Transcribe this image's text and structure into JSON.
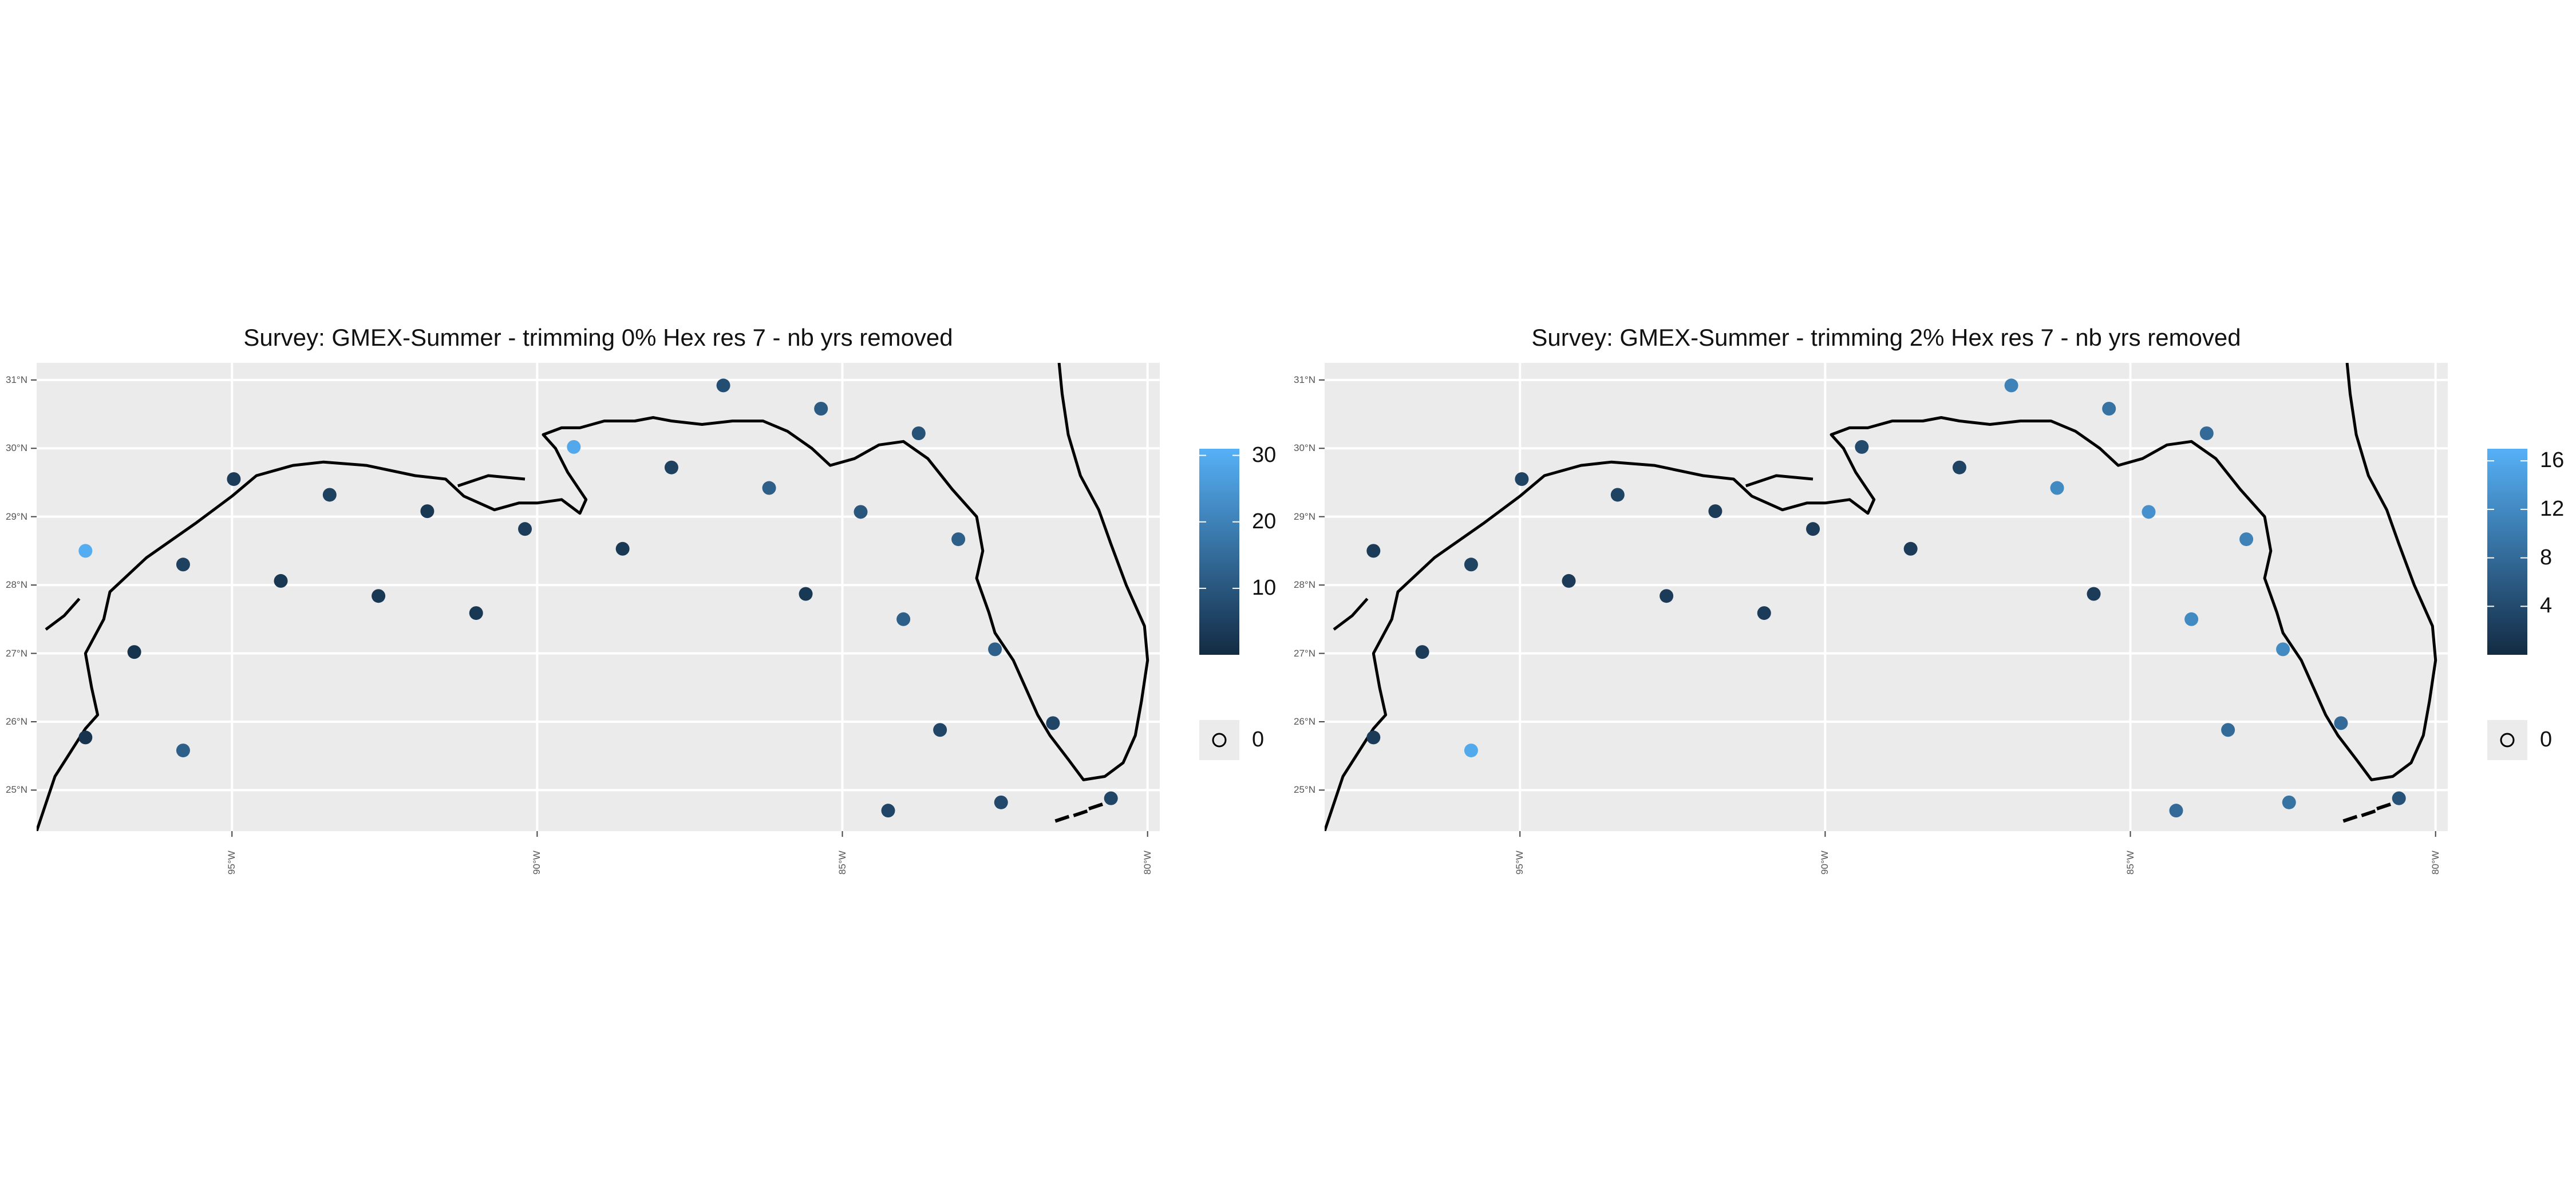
{
  "chart_data": [
    {
      "type": "scatter",
      "title": "Survey: GMEX-Summer - trimming 0% Hex res 7 - nb yrs removed",
      "y_ticks": [
        "31°N",
        "30°N",
        "29°N",
        "28°N",
        "27°N",
        "26°N",
        "25°N"
      ],
      "x_ticks": [
        "95°W",
        "90°W",
        "85°W",
        "80°W"
      ],
      "xlim": [
        -98.2,
        -79.8
      ],
      "ylim": [
        24.4,
        31.25
      ],
      "legend": {
        "colorbar_ticks": [
          "30",
          "20",
          "10"
        ],
        "colorbar_tick_values": [
          30,
          20,
          10
        ],
        "range": [
          0,
          31
        ],
        "na_label": "0",
        "low_color": "#132B43",
        "high_color": "#56B1F7",
        "placement": "right"
      },
      "points": [
        {
          "lon": -97.4,
          "lat": 28.5,
          "value": 30
        },
        {
          "lon": -97.4,
          "lat": 25.77,
          "value": 2
        },
        {
          "lon": -96.6,
          "lat": 27.02,
          "value": 2
        },
        {
          "lon": -95.8,
          "lat": 28.3,
          "value": 5
        },
        {
          "lon": -95.8,
          "lat": 25.58,
          "value": 12
        },
        {
          "lon": -94.97,
          "lat": 29.55,
          "value": 4
        },
        {
          "lon": -94.2,
          "lat": 28.06,
          "value": 3
        },
        {
          "lon": -93.4,
          "lat": 29.32,
          "value": 5
        },
        {
          "lon": -92.6,
          "lat": 27.84,
          "value": 3
        },
        {
          "lon": -91.8,
          "lat": 29.08,
          "value": 3
        },
        {
          "lon": -91.0,
          "lat": 27.59,
          "value": 3
        },
        {
          "lon": -90.2,
          "lat": 28.82,
          "value": 4
        },
        {
          "lon": -89.4,
          "lat": 30.02,
          "value": 29
        },
        {
          "lon": -88.6,
          "lat": 28.53,
          "value": 3
        },
        {
          "lon": -87.8,
          "lat": 29.72,
          "value": 5
        },
        {
          "lon": -86.95,
          "lat": 30.92,
          "value": 8
        },
        {
          "lon": -86.2,
          "lat": 29.42,
          "value": 12
        },
        {
          "lon": -85.6,
          "lat": 27.87,
          "value": 3
        },
        {
          "lon": -85.35,
          "lat": 30.58,
          "value": 11
        },
        {
          "lon": -84.7,
          "lat": 29.07,
          "value": 10
        },
        {
          "lon": -84.25,
          "lat": 24.7,
          "value": 6
        },
        {
          "lon": -84.0,
          "lat": 27.5,
          "value": 12
        },
        {
          "lon": -83.75,
          "lat": 30.22,
          "value": 9
        },
        {
          "lon": -83.4,
          "lat": 25.88,
          "value": 6
        },
        {
          "lon": -83.1,
          "lat": 28.67,
          "value": 12
        },
        {
          "lon": -82.5,
          "lat": 27.06,
          "value": 12
        },
        {
          "lon": -82.4,
          "lat": 24.82,
          "value": 7
        },
        {
          "lon": -81.55,
          "lat": 25.98,
          "value": 6
        },
        {
          "lon": -80.6,
          "lat": 24.88,
          "value": 6
        }
      ]
    },
    {
      "type": "scatter",
      "title": "Survey: GMEX-Summer - trimming 2% Hex res 7 - nb yrs removed",
      "y_ticks": [
        "31°N",
        "30°N",
        "29°N",
        "28°N",
        "27°N",
        "26°N",
        "25°N"
      ],
      "x_ticks": [
        "95°W",
        "90°W",
        "85°W",
        "80°W"
      ],
      "xlim": [
        -98.2,
        -79.8
      ],
      "ylim": [
        24.4,
        31.25
      ],
      "legend": {
        "colorbar_ticks": [
          "16",
          "12",
          "8",
          "4"
        ],
        "colorbar_tick_values": [
          16,
          12,
          8,
          4
        ],
        "range": [
          0,
          17
        ],
        "na_label": "0",
        "low_color": "#132B43",
        "high_color": "#56B1F7",
        "placement": "right"
      },
      "points": [
        {
          "lon": -97.4,
          "lat": 28.5,
          "value": 2
        },
        {
          "lon": -97.4,
          "lat": 25.77,
          "value": 2
        },
        {
          "lon": -96.6,
          "lat": 27.02,
          "value": 2
        },
        {
          "lon": -95.8,
          "lat": 28.3,
          "value": 3
        },
        {
          "lon": -95.8,
          "lat": 25.58,
          "value": 16
        },
        {
          "lon": -94.97,
          "lat": 29.55,
          "value": 3
        },
        {
          "lon": -94.2,
          "lat": 28.06,
          "value": 2
        },
        {
          "lon": -93.4,
          "lat": 29.32,
          "value": 3
        },
        {
          "lon": -92.6,
          "lat": 27.84,
          "value": 2
        },
        {
          "lon": -91.8,
          "lat": 29.08,
          "value": 2
        },
        {
          "lon": -91.0,
          "lat": 27.59,
          "value": 2
        },
        {
          "lon": -90.2,
          "lat": 28.82,
          "value": 2
        },
        {
          "lon": -89.4,
          "lat": 30.02,
          "value": 4
        },
        {
          "lon": -88.6,
          "lat": 28.53,
          "value": 2
        },
        {
          "lon": -87.8,
          "lat": 29.72,
          "value": 3
        },
        {
          "lon": -86.95,
          "lat": 30.92,
          "value": 11
        },
        {
          "lon": -86.2,
          "lat": 29.42,
          "value": 12
        },
        {
          "lon": -85.6,
          "lat": 27.87,
          "value": 2
        },
        {
          "lon": -85.35,
          "lat": 30.58,
          "value": 9
        },
        {
          "lon": -84.7,
          "lat": 29.07,
          "value": 13
        },
        {
          "lon": -84.25,
          "lat": 24.7,
          "value": 8
        },
        {
          "lon": -84.0,
          "lat": 27.5,
          "value": 12
        },
        {
          "lon": -83.75,
          "lat": 30.22,
          "value": 8
        },
        {
          "lon": -83.4,
          "lat": 25.88,
          "value": 8
        },
        {
          "lon": -83.1,
          "lat": 28.67,
          "value": 11
        },
        {
          "lon": -82.5,
          "lat": 27.06,
          "value": 12
        },
        {
          "lon": -82.4,
          "lat": 24.82,
          "value": 9
        },
        {
          "lon": -81.55,
          "lat": 25.98,
          "value": 8
        },
        {
          "lon": -80.6,
          "lat": 24.88,
          "value": 5
        }
      ]
    }
  ]
}
